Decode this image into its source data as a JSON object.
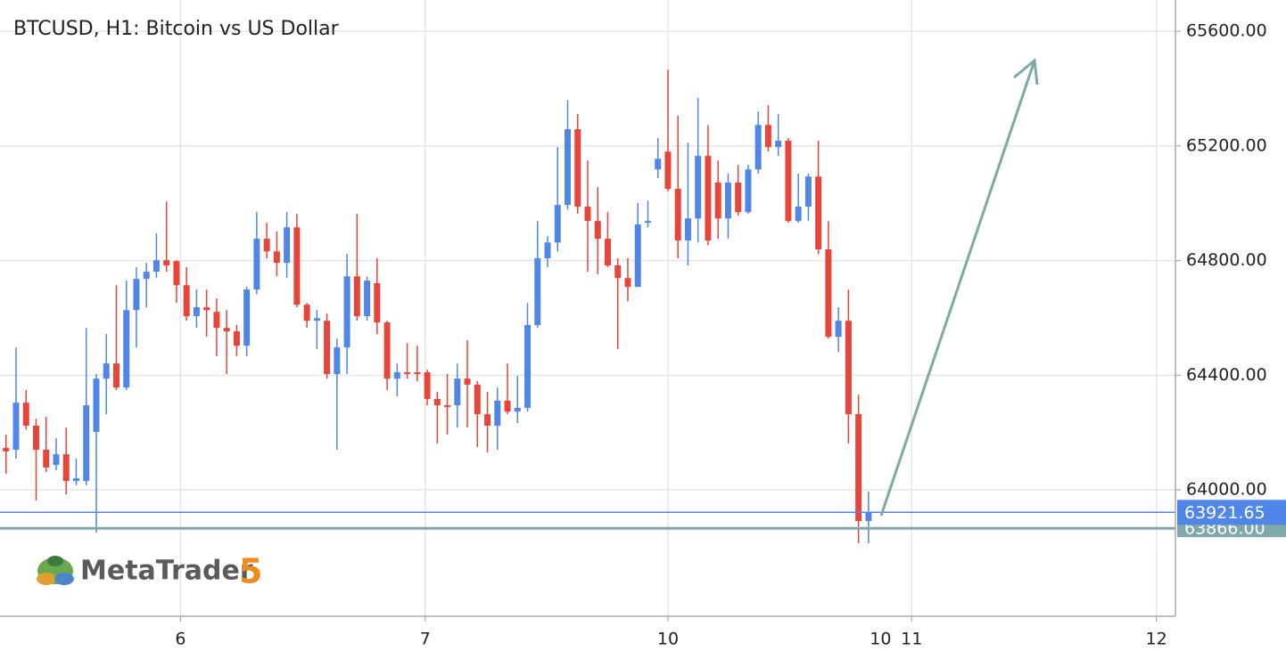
{
  "chart_data": {
    "type": "candlestick",
    "title": "BTCUSD, H1: Bitcoin vs US Dollar",
    "up_color": "#4f86e8",
    "down_color": "#e8443a",
    "grid": true,
    "xlim": [
      -0.6,
      116.6
    ],
    "ylim": [
      63559,
      65709
    ],
    "xticks": [
      {
        "value": 17.4,
        "label": "6"
      },
      {
        "value": 41.8,
        "label": "7"
      },
      {
        "value": 66,
        "label": "10"
      },
      {
        "value": 90.3,
        "label": "11"
      },
      {
        "value": 114.7,
        "label": "12"
      }
    ],
    "yticks": [
      {
        "value": 64000,
        "label": "64000.00"
      },
      {
        "value": 64400,
        "label": "64400.00"
      },
      {
        "value": 64800,
        "label": "64800.00"
      },
      {
        "value": 65200,
        "label": "65200.00"
      },
      {
        "value": 65600,
        "label": "65600.00"
      }
    ],
    "x_cursor": {
      "value": 87.2,
      "label": "10"
    },
    "price_line": {
      "value": 63921.65,
      "color": "#4f86e8"
    },
    "level_line": {
      "value": 63866,
      "label": "63866.00",
      "color": "#7fa8a8"
    },
    "open": [
      64146,
      64140,
      64304,
      64224,
      64140,
      64087,
      64124,
      64031,
      64031,
      64202,
      64388,
      64441,
      64357,
      64627,
      64736,
      64761,
      64801,
      64798,
      64714,
      64606,
      64637,
      64621,
      64565,
      64553,
      64503,
      64699,
      64876,
      64832,
      64792,
      64916,
      64646,
      64590,
      64590,
      64404,
      64497,
      64745,
      64606,
      64721,
      64584,
      64388,
      64410,
      64410,
      64410,
      64317,
      64295,
      64295,
      64388,
      64367,
      64264,
      64224,
      64311,
      64273,
      64286,
      64575,
      64808,
      64863,
      64994,
      65258,
      64988,
      64938,
      64876,
      64783,
      64739,
      64708,
      64932,
      65118,
      65180,
      65050,
      64870,
      64947,
      65165,
      65072,
      64947,
      65072,
      64969,
      65118,
      65273,
      65196,
      65218,
      64938,
      64988,
      65093,
      64839,
      64534,
      64590,
      64264,
      63891
    ],
    "high": [
      64193,
      64497,
      64348,
      64248,
      64255,
      64180,
      64217,
      64109,
      64565,
      64404,
      64544,
      64714,
      64730,
      64777,
      64792,
      64895,
      65006,
      64801,
      64777,
      64699,
      64699,
      64668,
      64627,
      64575,
      64708,
      64969,
      64932,
      64901,
      64969,
      64963,
      64652,
      64627,
      64615,
      64528,
      64823,
      64963,
      64745,
      64808,
      64590,
      64441,
      64512,
      64503,
      64419,
      64342,
      64404,
      64441,
      64522,
      64379,
      64342,
      64357,
      64441,
      64398,
      64652,
      64938,
      64885,
      65196,
      65360,
      65311,
      65149,
      65056,
      64969,
      64808,
      64808,
      65000,
      65009,
      65227,
      65466,
      65305,
      65211,
      65367,
      65273,
      65149,
      65103,
      65134,
      65134,
      65320,
      65342,
      65311,
      65227,
      65103,
      65103,
      65218,
      64938,
      64637,
      64699,
      64332,
      63994
    ],
    "low": [
      64056,
      64109,
      64211,
      63963,
      64062,
      64068,
      63984,
      64016,
      64016,
      63851,
      64264,
      64348,
      64348,
      64497,
      64637,
      64739,
      64761,
      64652,
      64590,
      64565,
      64534,
      64466,
      64404,
      64466,
      64466,
      64683,
      64808,
      64745,
      64739,
      64637,
      64565,
      64491,
      64388,
      64140,
      64404,
      64590,
      64590,
      64544,
      64348,
      64326,
      64388,
      64379,
      64295,
      64162,
      64193,
      64217,
      64217,
      64149,
      64130,
      64140,
      64264,
      64233,
      64273,
      64565,
      64777,
      64832,
      64978,
      64963,
      64761,
      64752,
      64777,
      64491,
      64658,
      64708,
      64916,
      65087,
      65041,
      64808,
      64783,
      64863,
      64854,
      64876,
      64876,
      64957,
      64963,
      65103,
      65180,
      65165,
      64932,
      64932,
      64938,
      64823,
      64528,
      64481,
      64162,
      63814,
      63814
    ],
    "close": [
      64134,
      64304,
      64224,
      64140,
      64078,
      64124,
      64031,
      64040,
      64295,
      64388,
      64441,
      64357,
      64627,
      64736,
      64761,
      64801,
      64783,
      64714,
      64606,
      64637,
      64627,
      64565,
      64553,
      64503,
      64699,
      64876,
      64832,
      64792,
      64916,
      64646,
      64590,
      64599,
      64404,
      64497,
      64745,
      64606,
      64730,
      64584,
      64388,
      64410,
      64404,
      64404,
      64317,
      64295,
      64289,
      64388,
      64367,
      64264,
      64224,
      64311,
      64273,
      64286,
      64575,
      64808,
      64863,
      64994,
      65258,
      64988,
      64938,
      64876,
      64783,
      64739,
      64708,
      64926,
      64938,
      65155,
      65050,
      64870,
      64947,
      65165,
      64870,
      64947,
      65072,
      64969,
      65118,
      65273,
      65196,
      65218,
      64938,
      64988,
      65093,
      64839,
      64534,
      64590,
      64264,
      63891,
      63922
    ]
  },
  "logo": {
    "name": "MetaTrader",
    "version": "5"
  }
}
